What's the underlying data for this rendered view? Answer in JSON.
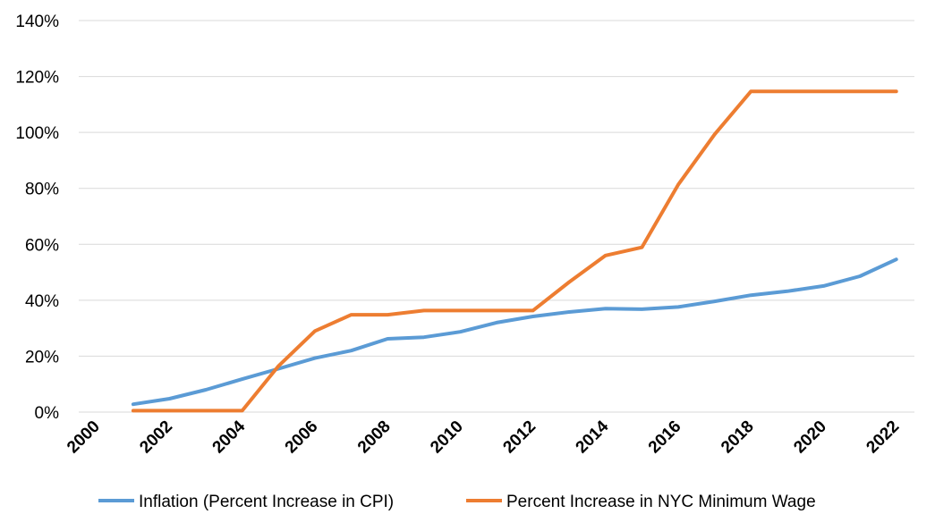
{
  "chart_data": {
    "type": "line",
    "title": "",
    "xlabel": "",
    "ylabel": "",
    "x_ticks": [
      "2000",
      "2002",
      "2004",
      "2006",
      "2008",
      "2010",
      "2012",
      "2014",
      "2016",
      "2018",
      "2020",
      "2022"
    ],
    "y_ticks": [
      "0%",
      "20%",
      "40%",
      "60%",
      "80%",
      "100%",
      "120%",
      "140%"
    ],
    "xlim": [
      2000,
      2022
    ],
    "ylim": [
      0,
      140
    ],
    "grid": "horizontal",
    "legend_position": "bottom",
    "x": [
      2001,
      2002,
      2003,
      2004,
      2005,
      2006,
      2007,
      2008,
      2009,
      2010,
      2011,
      2012,
      2013,
      2014,
      2015,
      2016,
      2017,
      2018,
      2019,
      2020,
      2021,
      2022
    ],
    "series": [
      {
        "name": "Inflation (Percent Increase in CPI)",
        "color": "#5b9bd5",
        "values": [
          2.8,
          4.8,
          8.0,
          11.8,
          15.5,
          19.3,
          22.0,
          26.2,
          26.8,
          28.7,
          32.0,
          34.2,
          35.8,
          37.0,
          36.8,
          37.6,
          39.6,
          41.8,
          43.2,
          45.1,
          48.6,
          54.6
        ]
      },
      {
        "name": "Percent Increase in NYC Minimum Wage",
        "color": "#ed7d31",
        "values": [
          0.5,
          0.5,
          0.5,
          0.5,
          16.5,
          29.0,
          34.8,
          34.8,
          36.3,
          36.3,
          36.3,
          36.3,
          46.5,
          56.0,
          58.9,
          81.3,
          99.3,
          114.7,
          114.7,
          114.7,
          114.7,
          114.7
        ]
      }
    ]
  }
}
